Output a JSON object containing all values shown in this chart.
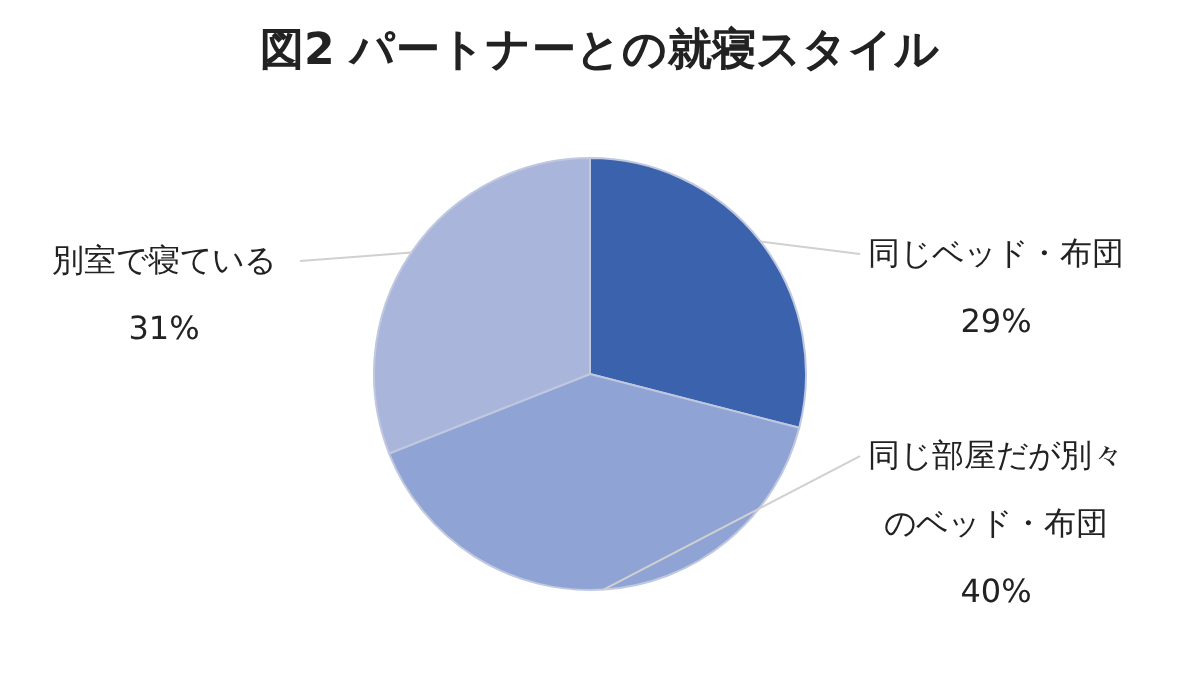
{
  "chart_data": {
    "type": "pie",
    "title": "図2 パートナーとの就寝スタイル",
    "categories": [
      "同じベッド・布団",
      "同じ部屋だが別々のベッド・布団",
      "別室で寝ている"
    ],
    "values": [
      29,
      40,
      31
    ],
    "colors": [
      "#3a62ad",
      "#8fa3d4",
      "#a9b5da"
    ],
    "value_labels": [
      "29%",
      "40%",
      "31%"
    ]
  }
}
